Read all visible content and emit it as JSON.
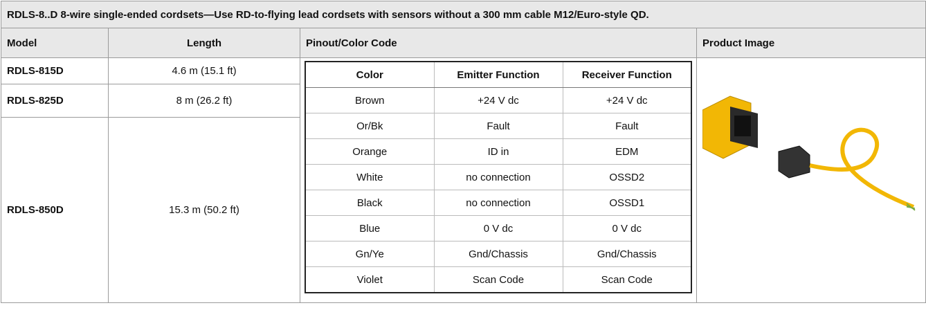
{
  "title": "RDLS-8..D 8-wire single-ended cordsets—Use RD-to-flying lead cordsets with sensors without a 300 mm cable M12/Euro-style QD.",
  "header": [
    "Model",
    "Length",
    "Pinout/Color Code",
    "Product Image"
  ],
  "rows": [
    {
      "model": "RDLS-815D",
      "length": "4.6 m (15.1 ft)"
    },
    {
      "model": "RDLS-825D",
      "length": "8 m (26.2 ft)"
    },
    {
      "model": "RDLS-850D",
      "length": "15.3 m (50.2 ft)"
    }
  ],
  "pinout": {
    "header": [
      "Color",
      "Emitter Function",
      "Receiver Function"
    ],
    "rows": [
      [
        "Brown",
        "+24 V dc",
        "+24 V dc"
      ],
      [
        "Or/Bk",
        "Fault",
        "Fault"
      ],
      [
        "Orange",
        "ID in",
        "EDM"
      ],
      [
        "White",
        "no connection",
        "OSSD2"
      ],
      [
        "Black",
        "no connection",
        "OSSD1"
      ],
      [
        "Blue",
        "0 V dc",
        "0 V dc"
      ],
      [
        "Gn/Ye",
        "Gnd/Chassis",
        "Gnd/Chassis"
      ],
      [
        "Violet",
        "Scan Code",
        "Scan Code"
      ]
    ]
  }
}
